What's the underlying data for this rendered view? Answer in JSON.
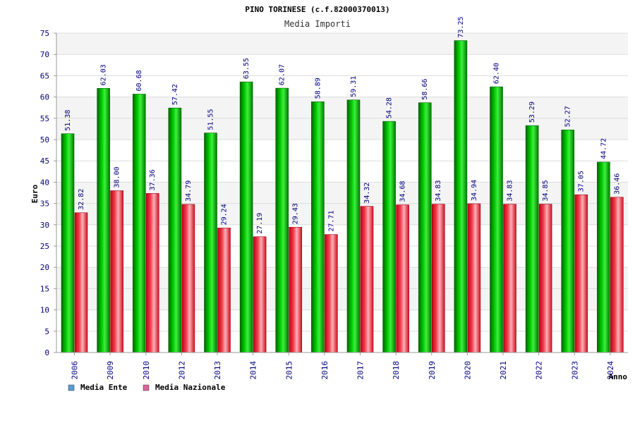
{
  "chart_data": {
    "type": "bar",
    "title": "PINO TORINESE (c.f.82000370013)",
    "subtitle": "Media Importi",
    "xlabel": "Anno",
    "ylabel": "Euro",
    "ylim": [
      0,
      75
    ],
    "yticks": [
      0,
      5,
      10,
      15,
      20,
      25,
      30,
      35,
      40,
      45,
      50,
      55,
      60,
      65,
      70,
      75
    ],
    "grid": true,
    "legend_position": "bottom-left",
    "categories": [
      "2006",
      "2009",
      "2010",
      "2012",
      "2013",
      "2014",
      "2015",
      "2016",
      "2017",
      "2018",
      "2019",
      "2020",
      "2021",
      "2022",
      "2023",
      "2024"
    ],
    "series": [
      {
        "name": "Media Ente",
        "color": "#00b400",
        "legend_color": "#5a9bd5",
        "values": [
          51.38,
          62.03,
          60.68,
          57.42,
          51.55,
          63.55,
          62.07,
          58.89,
          59.31,
          54.28,
          58.66,
          73.25,
          62.4,
          53.29,
          52.27,
          44.72
        ],
        "labels": [
          "51.38",
          "62.03",
          "60.68",
          "57.42",
          "51.55",
          "63.55",
          "62.07",
          "58.89",
          "59.31",
          "54.28",
          "58.66",
          "73.25",
          "62.40",
          "53.29",
          "52.27",
          "44.72"
        ]
      },
      {
        "name": "Media Nazionale",
        "color": "#e0202a",
        "legend_color": "#d9679a",
        "values": [
          32.82,
          38.0,
          37.36,
          34.79,
          29.24,
          27.19,
          29.43,
          27.71,
          34.32,
          34.68,
          34.83,
          34.94,
          34.83,
          34.85,
          37.05,
          36.46
        ],
        "labels": [
          "32.82",
          "38.00",
          "37.36",
          "34.79",
          "29.24",
          "27.19",
          "29.43",
          "27.71",
          "34.32",
          "34.68",
          "34.83",
          "34.94",
          "34.83",
          "34.85",
          "37.05",
          "36.46"
        ]
      }
    ]
  }
}
